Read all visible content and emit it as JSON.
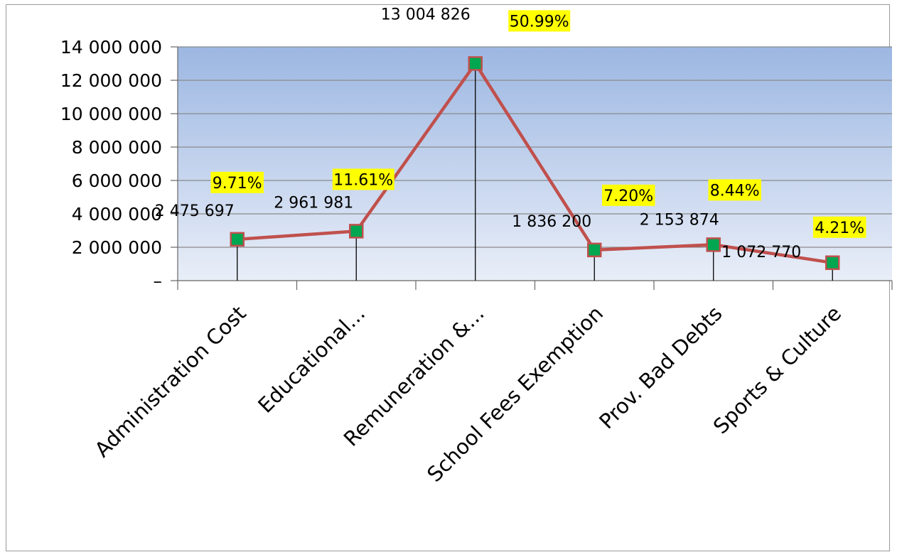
{
  "chart_data": {
    "type": "line",
    "title": "",
    "xlabel": "",
    "ylabel": "",
    "ylim": [
      0,
      14000000
    ],
    "y_ticks": [
      0,
      2000000,
      4000000,
      6000000,
      8000000,
      10000000,
      12000000,
      14000000
    ],
    "y_tick_labels": [
      "–",
      "2 000 000",
      "4 000 000",
      "6 000 000",
      "8 000 000",
      "10 000 000",
      "12 000 000",
      "14 000 000"
    ],
    "categories": [
      "Administration Cost",
      "Educational...",
      "Remuneration &...",
      "School Fees Exemption",
      "Prov. Bad Debts",
      "Sports & Culture"
    ],
    "values": [
      2475697,
      2961981,
      13004826,
      1836200,
      2153874,
      1072770
    ],
    "value_labels": [
      "2 475 697",
      "2 961 981",
      "13 004 826",
      "1 836 200",
      "2 153 874",
      "1 072 770"
    ],
    "percent_labels": [
      "9.71%",
      "11.61%",
      "50.99%",
      "7.20%",
      "8.44%",
      "4.21%"
    ],
    "grid": true,
    "legend": "none",
    "colors": {
      "line": "#c0504d",
      "marker": "#00a650",
      "marker_edge": "#c0504d",
      "plot_top": "#9cb7e2",
      "plot_bottom": "#e9eef8",
      "percent_bg": "#ffff00",
      "gridline": "#8a8a8a"
    }
  }
}
